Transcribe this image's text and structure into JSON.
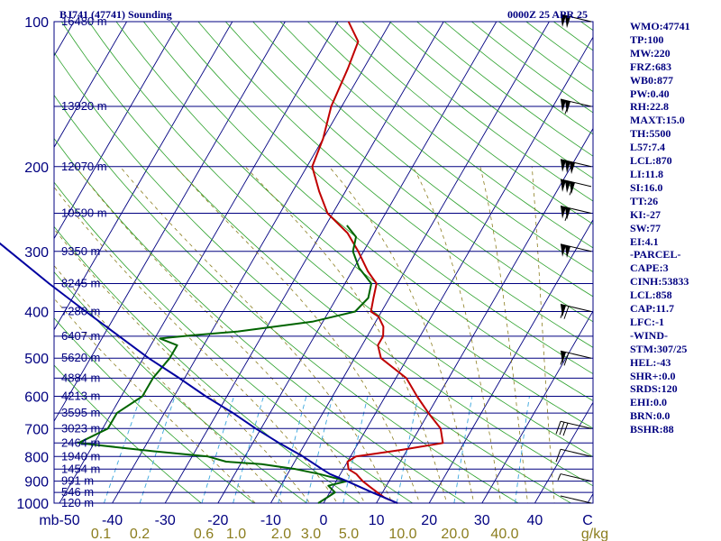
{
  "header": {
    "left": "BJ741 (47741) Sounding",
    "right": "0000Z 25 APR 25"
  },
  "indices": [
    "WMO:47741",
    "TP:100",
    "MW:220",
    "FRZ:683",
    "WB0:877",
    "PW:0.40",
    "RH:22.8",
    "MAXT:15.0",
    "TH:5500",
    "L57:7.4",
    "LCL:870",
    "LI:11.8",
    "SI:16.0",
    "TT:26",
    "KI:-27",
    "SW:77",
    "EI:4.1",
    "-PARCEL-",
    "CAPE:3",
    "CINH:53833",
    "LCL:858",
    "CAP:11.7",
    "LFC:-1",
    "-WIND-",
    "STM:307/25",
    "HEL:-43",
    "SHR+:0.0",
    "SRDS:120",
    "EHI:0.0",
    "BRN:0.0",
    "BSHR:88"
  ],
  "chart_data": {
    "type": "line",
    "diagram": "skew-T log-P",
    "pressure_range_hpa": [
      100,
      1000
    ],
    "temperature_range_c": [
      -50,
      50
    ],
    "pressure_ticks": [
      "100",
      "200",
      "300",
      "400",
      "500",
      "600",
      "700",
      "800",
      "900",
      "1000"
    ],
    "pressure_tick_values": [
      100,
      200,
      300,
      400,
      500,
      600,
      700,
      800,
      900,
      1000
    ],
    "temperature_ticks": [
      "mb-50",
      "-40",
      "-30",
      "-20",
      "-10",
      "0",
      "10",
      "20",
      "30",
      "40",
      "C"
    ],
    "mixing_ratio_ticks": [
      "0.1",
      "0.2",
      "0.6",
      "1.0",
      "2.0",
      "3.0",
      "5.0",
      "10.0",
      "20.0",
      "40.0",
      "g/kg"
    ],
    "height_labels": [
      {
        "p": 100,
        "label": "16480 m"
      },
      {
        "p": 150,
        "label": "13920 m"
      },
      {
        "p": 200,
        "label": "12070 m"
      },
      {
        "p": 250,
        "label": "10590 m"
      },
      {
        "p": 300,
        "label": "9350 m"
      },
      {
        "p": 350,
        "label": "8245 m"
      },
      {
        "p": 400,
        "label": "7280 m"
      },
      {
        "p": 450,
        "label": "6407 m"
      },
      {
        "p": 500,
        "label": "5620 m"
      },
      {
        "p": 550,
        "label": "4884 m"
      },
      {
        "p": 600,
        "label": "4213 m"
      },
      {
        "p": 650,
        "label": "3595 m"
      },
      {
        "p": 700,
        "label": "3023 m"
      },
      {
        "p": 750,
        "label": "2464 m"
      },
      {
        "p": 800,
        "label": "1940 m"
      },
      {
        "p": 850,
        "label": "1454 m"
      },
      {
        "p": 900,
        "label": "991 m"
      },
      {
        "p": 950,
        "label": "546 m"
      },
      {
        "p": 1000,
        "label": "120 m"
      }
    ],
    "series": [
      {
        "key": "temperature",
        "color": "#c00000",
        "points": [
          [
            1000,
            14
          ],
          [
            975,
            11
          ],
          [
            950,
            9
          ],
          [
            925,
            7
          ],
          [
            900,
            5
          ],
          [
            870,
            3
          ],
          [
            850,
            1
          ],
          [
            820,
            0
          ],
          [
            800,
            1
          ],
          [
            775,
            9
          ],
          [
            750,
            16
          ],
          [
            700,
            14
          ],
          [
            650,
            10
          ],
          [
            600,
            6
          ],
          [
            550,
            2
          ],
          [
            500,
            -5
          ],
          [
            470,
            -7
          ],
          [
            450,
            -7
          ],
          [
            430,
            -8
          ],
          [
            410,
            -10
          ],
          [
            400,
            -12
          ],
          [
            375,
            -13
          ],
          [
            350,
            -14
          ],
          [
            330,
            -17
          ],
          [
            300,
            -21
          ],
          [
            275,
            -25
          ],
          [
            250,
            -31
          ],
          [
            225,
            -35
          ],
          [
            200,
            -39
          ],
          [
            175,
            -40
          ],
          [
            150,
            -42
          ],
          [
            125,
            -43
          ],
          [
            110,
            -44
          ],
          [
            100,
            -48
          ]
        ]
      },
      {
        "key": "dewpoint",
        "color": "#006400",
        "points": [
          [
            1000,
            -1
          ],
          [
            975,
            0
          ],
          [
            950,
            1
          ],
          [
            920,
            -1
          ],
          [
            900,
            2
          ],
          [
            870,
            -4
          ],
          [
            850,
            -9
          ],
          [
            830,
            -16
          ],
          [
            820,
            -23
          ],
          [
            800,
            -27
          ],
          [
            780,
            -38
          ],
          [
            750,
            -53
          ],
          [
            700,
            -49
          ],
          [
            650,
            -49
          ],
          [
            600,
            -46
          ],
          [
            550,
            -46
          ],
          [
            500,
            -45
          ],
          [
            470,
            -45
          ],
          [
            455,
            -49
          ],
          [
            448,
            -43
          ],
          [
            440,
            -35
          ],
          [
            420,
            -22
          ],
          [
            400,
            -15
          ],
          [
            375,
            -14
          ],
          [
            350,
            -15
          ],
          [
            325,
            -19
          ],
          [
            300,
            -22
          ],
          [
            280,
            -23
          ],
          [
            265,
            -26
          ]
        ]
      },
      {
        "key": "parcel",
        "color": "#0000a0",
        "points": [
          [
            1000,
            14
          ],
          [
            950,
            8
          ],
          [
            900,
            2
          ],
          [
            870,
            -2
          ],
          [
            850,
            -4
          ],
          [
            800,
            -9
          ],
          [
            750,
            -15
          ],
          [
            700,
            -21
          ],
          [
            650,
            -27
          ],
          [
            600,
            -34
          ],
          [
            550,
            -41
          ],
          [
            500,
            -49
          ],
          [
            450,
            -57
          ],
          [
            400,
            -66
          ],
          [
            350,
            -76
          ],
          [
            300,
            -87
          ],
          [
            250,
            -100
          ],
          [
            200,
            -115
          ],
          [
            150,
            -133
          ],
          [
            120,
            -148
          ],
          [
            110,
            -153
          ]
        ]
      }
    ],
    "wind_barbs": [
      {
        "p": 100,
        "flags": 2,
        "full": 0,
        "half": 0
      },
      {
        "p": 150,
        "flags": 2,
        "full": 1,
        "half": 0
      },
      {
        "p": 200,
        "flags": 3,
        "full": 0,
        "half": 0
      },
      {
        "p": 220,
        "flags": 3,
        "full": 1,
        "half": 0
      },
      {
        "p": 250,
        "flags": 2,
        "full": 1,
        "half": 0
      },
      {
        "p": 300,
        "flags": 2,
        "full": 0,
        "half": 0
      },
      {
        "p": 400,
        "flags": 1,
        "full": 2,
        "half": 0
      },
      {
        "p": 500,
        "flags": 1,
        "full": 2,
        "half": 0
      },
      {
        "p": 700,
        "flags": 0,
        "full": 3,
        "half": 0
      },
      {
        "p": 800,
        "flags": 0,
        "full": 1,
        "half": 0
      },
      {
        "p": 900,
        "flags": 0,
        "full": 0,
        "half": 1
      },
      {
        "p": 1000,
        "flags": 0,
        "full": 0,
        "half": 0
      }
    ]
  }
}
